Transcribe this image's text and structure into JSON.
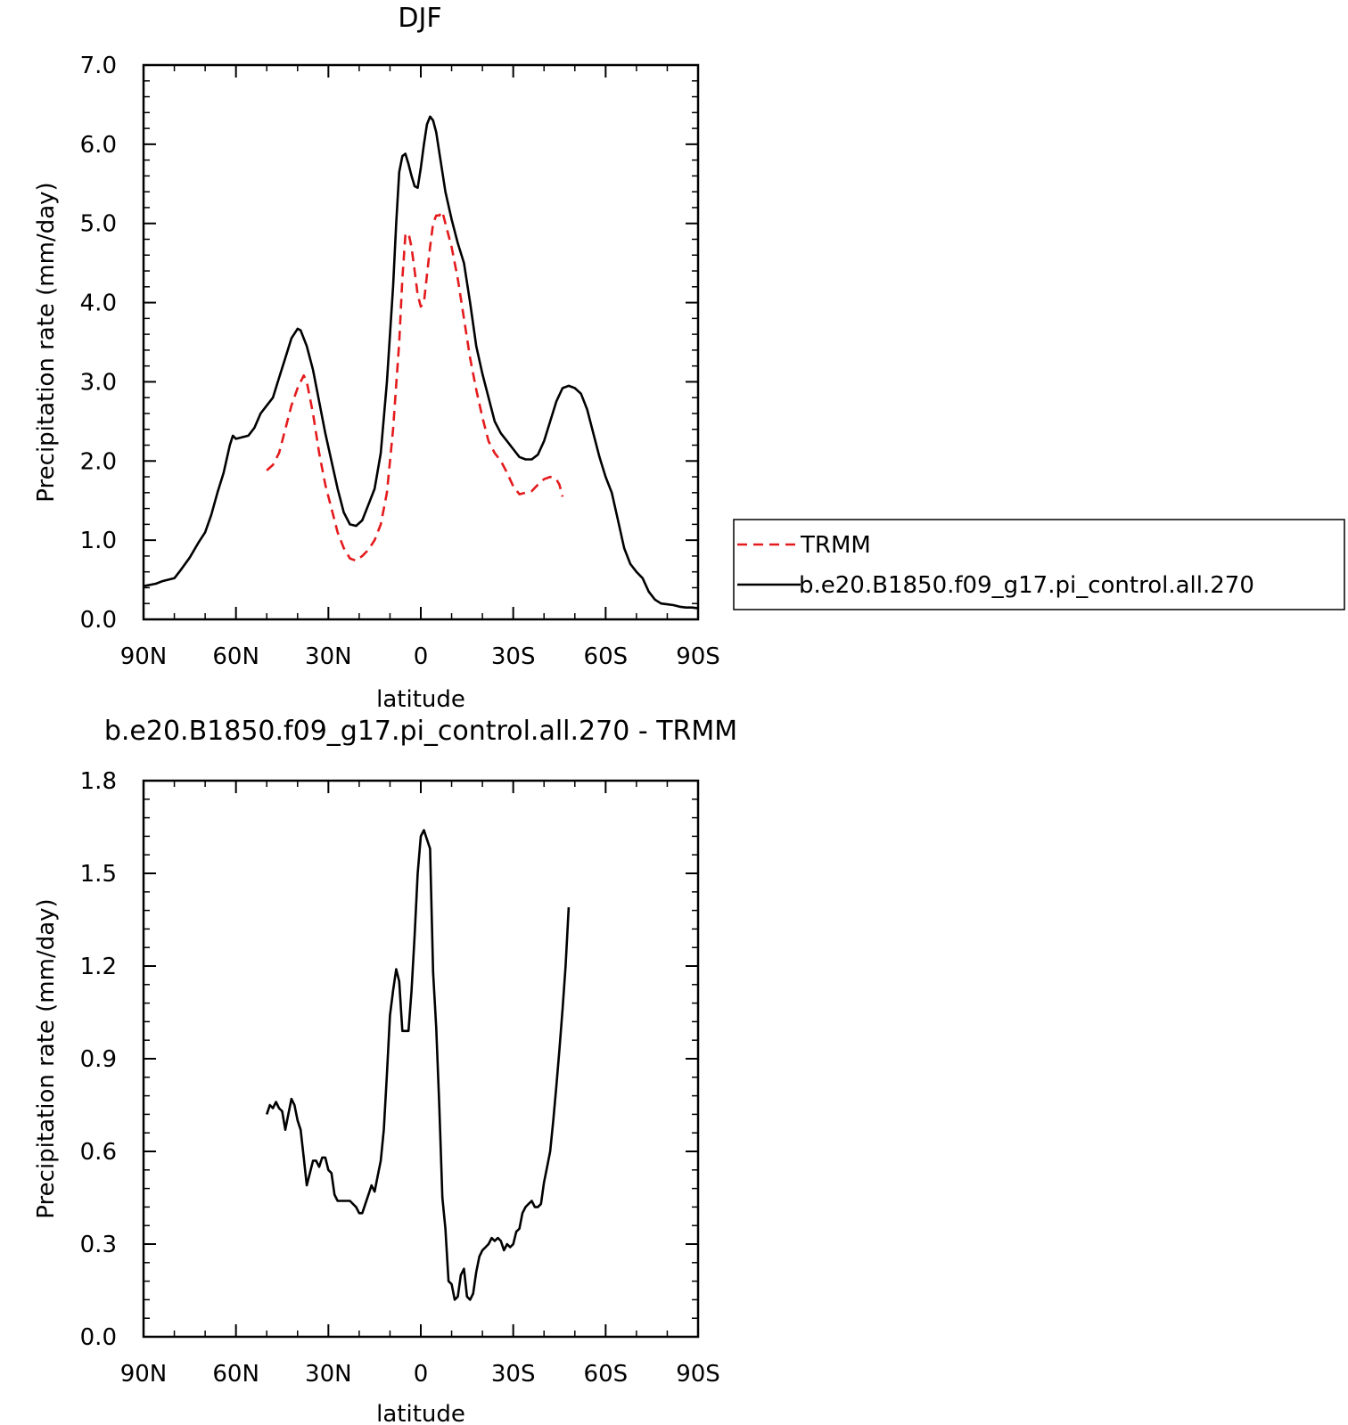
{
  "chart_data": [
    {
      "type": "line",
      "title": "DJF",
      "xlabel": "latitude",
      "ylabel": "Precipitation rate (mm/day)",
      "xlim": [
        90,
        -90
      ],
      "ylim": [
        0,
        7
      ],
      "x_tick_values": [
        90,
        60,
        30,
        0,
        -30,
        -60,
        -90
      ],
      "x_tick_labels": [
        "90N",
        "60N",
        "30N",
        "0",
        "30S",
        "60S",
        "90S"
      ],
      "y_tick_values": [
        0,
        1,
        2,
        3,
        4,
        5,
        6,
        7
      ],
      "y_tick_labels": [
        "0.0",
        "1.0",
        "2.0",
        "3.0",
        "4.0",
        "5.0",
        "6.0",
        "7.0"
      ],
      "grid": false,
      "legend_position": "right",
      "series": [
        {
          "name": "TRMM",
          "color": "#e41a1c",
          "dash": "dashed",
          "points": [
            [
              50,
              1.88
            ],
            [
              48,
              1.95
            ],
            [
              46,
              2.1
            ],
            [
              44,
              2.4
            ],
            [
              42,
              2.7
            ],
            [
              40,
              2.92
            ],
            [
              38,
              3.08
            ],
            [
              37,
              3.0
            ],
            [
              35,
              2.6
            ],
            [
              33,
              2.1
            ],
            [
              31,
              1.7
            ],
            [
              29,
              1.4
            ],
            [
              27,
              1.1
            ],
            [
              25,
              0.9
            ],
            [
              23,
              0.77
            ],
            [
              21,
              0.74
            ],
            [
              19,
              0.8
            ],
            [
              17,
              0.88
            ],
            [
              15,
              1.0
            ],
            [
              13,
              1.2
            ],
            [
              11,
              1.6
            ],
            [
              9,
              2.4
            ],
            [
              7,
              3.5
            ],
            [
              6,
              4.3
            ],
            [
              5,
              4.85
            ],
            [
              4,
              4.88
            ],
            [
              3,
              4.7
            ],
            [
              2,
              4.4
            ],
            [
              1,
              4.1
            ],
            [
              0,
              3.95
            ],
            [
              -1,
              4.0
            ],
            [
              -2,
              4.35
            ],
            [
              -3,
              4.7
            ],
            [
              -4,
              5.0
            ],
            [
              -5,
              5.1
            ],
            [
              -6,
              5.1
            ],
            [
              -7,
              5.15
            ],
            [
              -8,
              5.0
            ],
            [
              -10,
              4.7
            ],
            [
              -12,
              4.3
            ],
            [
              -14,
              3.8
            ],
            [
              -16,
              3.3
            ],
            [
              -18,
              2.9
            ],
            [
              -20,
              2.55
            ],
            [
              -22,
              2.25
            ],
            [
              -24,
              2.1
            ],
            [
              -26,
              2.0
            ],
            [
              -28,
              1.85
            ],
            [
              -30,
              1.68
            ],
            [
              -32,
              1.58
            ],
            [
              -34,
              1.6
            ],
            [
              -36,
              1.62
            ],
            [
              -38,
              1.7
            ],
            [
              -40,
              1.77
            ],
            [
              -42,
              1.8
            ],
            [
              -44,
              1.77
            ],
            [
              -45,
              1.7
            ],
            [
              -46,
              1.55
            ]
          ]
        },
        {
          "name": "b.e20.B1850.f09_g17.pi_control.all.270",
          "color": "#000000",
          "dash": "solid",
          "points": [
            [
              90,
              0.42
            ],
            [
              86,
              0.45
            ],
            [
              84,
              0.48
            ],
            [
              80,
              0.52
            ],
            [
              78,
              0.62
            ],
            [
              75,
              0.78
            ],
            [
              72,
              0.98
            ],
            [
              70,
              1.1
            ],
            [
              68,
              1.32
            ],
            [
              66,
              1.6
            ],
            [
              64,
              1.85
            ],
            [
              62,
              2.2
            ],
            [
              61,
              2.32
            ],
            [
              60,
              2.28
            ],
            [
              58,
              2.3
            ],
            [
              56,
              2.32
            ],
            [
              54,
              2.42
            ],
            [
              52,
              2.6
            ],
            [
              50,
              2.7
            ],
            [
              48,
              2.8
            ],
            [
              46,
              3.05
            ],
            [
              44,
              3.3
            ],
            [
              42,
              3.55
            ],
            [
              40,
              3.67
            ],
            [
              39,
              3.65
            ],
            [
              37,
              3.45
            ],
            [
              35,
              3.15
            ],
            [
              33,
              2.75
            ],
            [
              31,
              2.35
            ],
            [
              29,
              2.0
            ],
            [
              27,
              1.65
            ],
            [
              25,
              1.35
            ],
            [
              23,
              1.2
            ],
            [
              21,
              1.18
            ],
            [
              19,
              1.25
            ],
            [
              17,
              1.45
            ],
            [
              15,
              1.65
            ],
            [
              13,
              2.1
            ],
            [
              11,
              3.0
            ],
            [
              9,
              4.2
            ],
            [
              8,
              5.0
            ],
            [
              7,
              5.65
            ],
            [
              6,
              5.85
            ],
            [
              5,
              5.88
            ],
            [
              4,
              5.75
            ],
            [
              3,
              5.6
            ],
            [
              2,
              5.47
            ],
            [
              1,
              5.45
            ],
            [
              0,
              5.7
            ],
            [
              -1,
              6.0
            ],
            [
              -2,
              6.25
            ],
            [
              -3,
              6.35
            ],
            [
              -4,
              6.3
            ],
            [
              -5,
              6.15
            ],
            [
              -6,
              5.9
            ],
            [
              -8,
              5.4
            ],
            [
              -10,
              5.05
            ],
            [
              -12,
              4.75
            ],
            [
              -14,
              4.5
            ],
            [
              -16,
              4.0
            ],
            [
              -18,
              3.45
            ],
            [
              -20,
              3.1
            ],
            [
              -22,
              2.8
            ],
            [
              -24,
              2.5
            ],
            [
              -26,
              2.35
            ],
            [
              -28,
              2.25
            ],
            [
              -30,
              2.15
            ],
            [
              -32,
              2.05
            ],
            [
              -34,
              2.02
            ],
            [
              -36,
              2.02
            ],
            [
              -38,
              2.08
            ],
            [
              -40,
              2.25
            ],
            [
              -42,
              2.5
            ],
            [
              -44,
              2.75
            ],
            [
              -46,
              2.92
            ],
            [
              -48,
              2.95
            ],
            [
              -50,
              2.92
            ],
            [
              -52,
              2.85
            ],
            [
              -54,
              2.65
            ],
            [
              -56,
              2.35
            ],
            [
              -58,
              2.05
            ],
            [
              -60,
              1.8
            ],
            [
              -62,
              1.6
            ],
            [
              -64,
              1.25
            ],
            [
              -66,
              0.9
            ],
            [
              -68,
              0.7
            ],
            [
              -70,
              0.6
            ],
            [
              -72,
              0.52
            ],
            [
              -74,
              0.35
            ],
            [
              -76,
              0.25
            ],
            [
              -78,
              0.2
            ],
            [
              -80,
              0.19
            ],
            [
              -82,
              0.18
            ],
            [
              -84,
              0.16
            ],
            [
              -86,
              0.15
            ],
            [
              -88,
              0.15
            ],
            [
              -90,
              0.14
            ]
          ]
        }
      ]
    },
    {
      "type": "line",
      "title": "b.e20.B1850.f09_g17.pi_control.all.270 - TRMM",
      "xlabel": "latitude",
      "ylabel": "Precipitation rate (mm/day)",
      "xlim": [
        90,
        -90
      ],
      "ylim": [
        0,
        1.8
      ],
      "x_tick_values": [
        90,
        60,
        30,
        0,
        -30,
        -60,
        -90
      ],
      "x_tick_labels": [
        "90N",
        "60N",
        "30N",
        "0",
        "30S",
        "60S",
        "90S"
      ],
      "y_tick_values": [
        0,
        0.3,
        0.6,
        0.9,
        1.2,
        1.5,
        1.8
      ],
      "y_tick_labels": [
        "0.0",
        "0.3",
        "0.6",
        "0.9",
        "1.2",
        "1.5",
        "1.8"
      ],
      "grid": false,
      "series": [
        {
          "color": "#000000",
          "dash": "solid",
          "points": [
            [
              50,
              0.72
            ],
            [
              49,
              0.75
            ],
            [
              48,
              0.74
            ],
            [
              47,
              0.76
            ],
            [
              46,
              0.74
            ],
            [
              45,
              0.73
            ],
            [
              44,
              0.67
            ],
            [
              43,
              0.72
            ],
            [
              42,
              0.77
            ],
            [
              41,
              0.75
            ],
            [
              40,
              0.7
            ],
            [
              39,
              0.67
            ],
            [
              38,
              0.58
            ],
            [
              37,
              0.49
            ],
            [
              36,
              0.53
            ],
            [
              35,
              0.57
            ],
            [
              34,
              0.57
            ],
            [
              33,
              0.55
            ],
            [
              32,
              0.58
            ],
            [
              31,
              0.58
            ],
            [
              30,
              0.54
            ],
            [
              29,
              0.53
            ],
            [
              28,
              0.46
            ],
            [
              27,
              0.44
            ],
            [
              25,
              0.44
            ],
            [
              23,
              0.44
            ],
            [
              21,
              0.42
            ],
            [
              20,
              0.4
            ],
            [
              19,
              0.4
            ],
            [
              18,
              0.43
            ],
            [
              17,
              0.46
            ],
            [
              16,
              0.49
            ],
            [
              15,
              0.47
            ],
            [
              14,
              0.52
            ],
            [
              13,
              0.57
            ],
            [
              12,
              0.67
            ],
            [
              11,
              0.85
            ],
            [
              10,
              1.04
            ],
            [
              9,
              1.12
            ],
            [
              8,
              1.19
            ],
            [
              7,
              1.15
            ],
            [
              6,
              0.99
            ],
            [
              5,
              0.99
            ],
            [
              4,
              0.99
            ],
            [
              3,
              1.12
            ],
            [
              2,
              1.3
            ],
            [
              1,
              1.5
            ],
            [
              0,
              1.62
            ],
            [
              -1,
              1.64
            ],
            [
              -2,
              1.61
            ],
            [
              -3,
              1.58
            ],
            [
              -4,
              1.18
            ],
            [
              -5,
              1.0
            ],
            [
              -6,
              0.75
            ],
            [
              -7,
              0.45
            ],
            [
              -8,
              0.35
            ],
            [
              -9,
              0.18
            ],
            [
              -10,
              0.17
            ],
            [
              -11,
              0.12
            ],
            [
              -12,
              0.13
            ],
            [
              -13,
              0.2
            ],
            [
              -14,
              0.22
            ],
            [
              -15,
              0.13
            ],
            [
              -16,
              0.12
            ],
            [
              -17,
              0.14
            ],
            [
              -18,
              0.21
            ],
            [
              -19,
              0.26
            ],
            [
              -20,
              0.28
            ],
            [
              -21,
              0.29
            ],
            [
              -22,
              0.3
            ],
            [
              -23,
              0.32
            ],
            [
              -24,
              0.31
            ],
            [
              -25,
              0.32
            ],
            [
              -26,
              0.31
            ],
            [
              -27,
              0.28
            ],
            [
              -28,
              0.3
            ],
            [
              -29,
              0.29
            ],
            [
              -30,
              0.3
            ],
            [
              -31,
              0.34
            ],
            [
              -32,
              0.35
            ],
            [
              -33,
              0.4
            ],
            [
              -34,
              0.42
            ],
            [
              -35,
              0.43
            ],
            [
              -36,
              0.44
            ],
            [
              -37,
              0.42
            ],
            [
              -38,
              0.42
            ],
            [
              -39,
              0.43
            ],
            [
              -40,
              0.5
            ],
            [
              -41,
              0.55
            ],
            [
              -42,
              0.6
            ],
            [
              -43,
              0.7
            ],
            [
              -44,
              0.81
            ],
            [
              -45,
              0.93
            ],
            [
              -46,
              1.06
            ],
            [
              -47,
              1.2
            ],
            [
              -48,
              1.39
            ]
          ]
        }
      ]
    }
  ]
}
